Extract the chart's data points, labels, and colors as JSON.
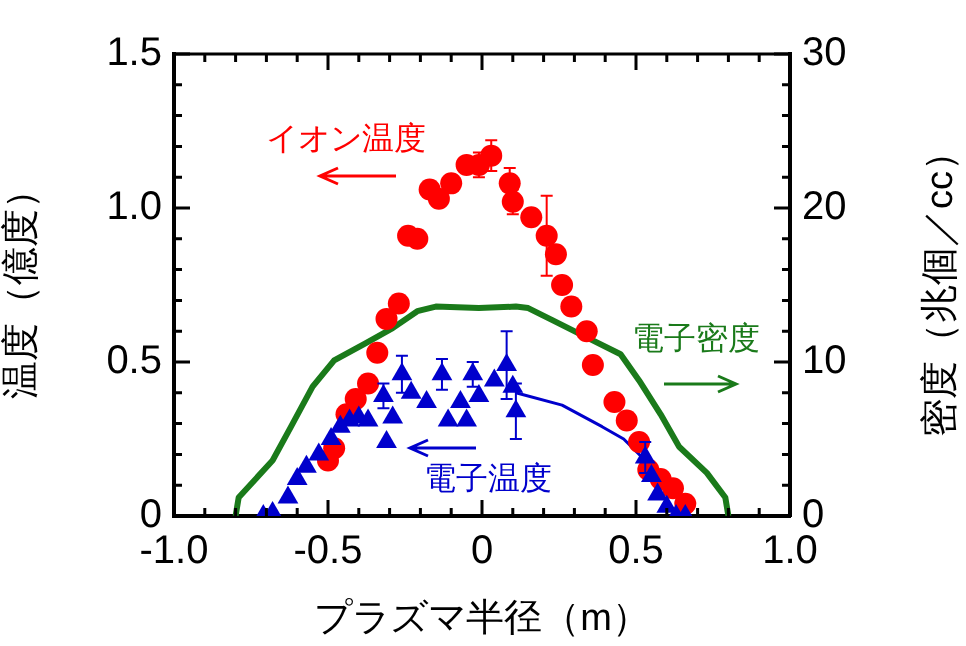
{
  "chart_data": {
    "type": "scatter",
    "xlabel": "プラズマ半径（m）",
    "ylabel": "温度（億度）",
    "y2label": "密度（兆個／cc）",
    "xlim": [
      -1.0,
      1.0
    ],
    "xticks": [
      {
        "value": -1.0,
        "label": "-1.0"
      },
      {
        "value": -0.9,
        "label": null
      },
      {
        "value": -0.8,
        "label": null
      },
      {
        "value": -0.7,
        "label": null
      },
      {
        "value": -0.6,
        "label": null
      },
      {
        "value": -0.5,
        "label": "-0.5"
      },
      {
        "value": -0.4,
        "label": null
      },
      {
        "value": -0.3,
        "label": null
      },
      {
        "value": -0.2,
        "label": null
      },
      {
        "value": -0.1,
        "label": null
      },
      0,
      {
        "value": 0.1,
        "label": null
      },
      {
        "value": 0.2,
        "label": null
      },
      {
        "value": 0.3,
        "label": null
      },
      {
        "value": 0.4,
        "label": null
      },
      0.5,
      {
        "value": 0.6,
        "label": null
      },
      {
        "value": 0.7,
        "label": null
      },
      {
        "value": 0.8,
        "label": null
      },
      {
        "value": 0.9,
        "label": null
      },
      {
        "value": 1.0,
        "label": "1.0"
      }
    ],
    "ylim": [
      0,
      1.5
    ],
    "yticks": [
      0,
      {
        "value": 0.1,
        "label": null
      },
      {
        "value": 0.2,
        "label": null
      },
      {
        "value": 0.3,
        "label": null
      },
      {
        "value": 0.4,
        "label": null
      },
      0.5,
      {
        "value": 0.6,
        "label": null
      },
      {
        "value": 0.7,
        "label": null
      },
      {
        "value": 0.8,
        "label": null
      },
      {
        "value": 0.9,
        "label": null
      },
      {
        "value": 1.0,
        "label": "1.0"
      },
      {
        "value": 1.1,
        "label": null
      },
      {
        "value": 1.2,
        "label": null
      },
      {
        "value": 1.3,
        "label": null
      },
      {
        "value": 1.4,
        "label": null
      },
      1.5
    ],
    "y2lim": [
      0,
      30
    ],
    "y2ticks": [
      0,
      {
        "value": 2,
        "label": null
      },
      {
        "value": 4,
        "label": null
      },
      {
        "value": 6,
        "label": null
      },
      {
        "value": 8,
        "label": null
      },
      10,
      {
        "value": 12,
        "label": null
      },
      {
        "value": 14,
        "label": null
      },
      {
        "value": 16,
        "label": null
      },
      {
        "value": 18,
        "label": null
      },
      20,
      {
        "value": 22,
        "label": null
      },
      {
        "value": 24,
        "label": null
      },
      {
        "value": 26,
        "label": null
      },
      {
        "value": 28,
        "label": null
      },
      30
    ],
    "grid": false,
    "legend": false,
    "annotations": [
      "イオン温度",
      "電子温度",
      "電子密度"
    ],
    "series": [
      {
        "marker": "circle",
        "color": "#ff0000",
        "x": [
          -0.5,
          -0.48,
          -0.44,
          -0.41,
          -0.37,
          -0.34,
          -0.31,
          -0.27,
          -0.24,
          -0.21,
          -0.17,
          -0.14,
          -0.1,
          -0.05,
          -0.01,
          0.03,
          0.09,
          0.1,
          0.16,
          0.21,
          0.24,
          0.26,
          0.29,
          0.34,
          0.36,
          0.43,
          0.47,
          0.51,
          0.54,
          0.58,
          0.62,
          0.66
        ],
        "values": [
          0.18,
          0.22,
          0.33,
          0.38,
          0.43,
          0.53,
          0.64,
          0.69,
          0.91,
          0.9,
          1.06,
          1.03,
          1.08,
          1.14,
          1.14,
          1.17,
          1.08,
          1.02,
          0.97,
          0.91,
          0.85,
          0.75,
          0.68,
          0.6,
          0.49,
          0.37,
          0.31,
          0.24,
          0.15,
          0.12,
          0.09,
          0.04
        ],
        "errors": [
          null,
          null,
          null,
          null,
          null,
          null,
          null,
          null,
          null,
          null,
          null,
          null,
          null,
          null,
          0.04,
          0.05,
          0.05,
          0.04,
          null,
          0.13,
          null,
          null,
          null,
          null,
          null,
          null,
          null,
          null,
          null,
          null,
          null,
          null
        ]
      },
      {
        "marker": "triangle",
        "color": "#0000cc",
        "x": [
          -0.71,
          -0.68,
          -0.63,
          -0.6,
          -0.57,
          -0.53,
          -0.49,
          -0.46,
          -0.43,
          -0.4,
          -0.37,
          -0.32,
          -0.31,
          -0.29,
          -0.26,
          -0.23,
          -0.18,
          -0.13,
          -0.11,
          -0.07,
          -0.05,
          -0.03,
          -0.01,
          0.04,
          0.08,
          0.1,
          0.11,
          0.53,
          0.55,
          0.57,
          0.6,
          0.63,
          0.66
        ],
        "values": [
          0,
          0.01,
          0.06,
          0.12,
          0.16,
          0.2,
          0.25,
          0.29,
          0.31,
          0.32,
          0.31,
          0.39,
          0.24,
          0.32,
          0.46,
          0.4,
          0.37,
          0.46,
          0.31,
          0.37,
          0.31,
          0.46,
          0.39,
          0.44,
          0.49,
          0.42,
          0.34,
          0.19,
          0.13,
          0.07,
          0.03,
          0,
          0
        ],
        "errors": [
          null,
          null,
          null,
          null,
          null,
          null,
          null,
          null,
          null,
          null,
          null,
          0.04,
          null,
          null,
          0.06,
          null,
          null,
          0.05,
          null,
          null,
          null,
          0.04,
          null,
          null,
          0.11,
          null,
          0.09,
          0.05,
          null,
          null,
          null,
          null,
          null
        ]
      },
      {
        "type": "line",
        "marker": "none",
        "color": "#0000cc",
        "x": [
          0.11,
          0.26,
          0.39,
          0.46,
          0.53
        ],
        "values": [
          0.4,
          0.36,
          0.29,
          0.25,
          0.18
        ]
      },
      {
        "type": "line",
        "marker": "none",
        "axis": "y2",
        "color": "#1a7a1a",
        "x": [
          -0.8,
          -0.79,
          -0.68,
          -0.62,
          -0.55,
          -0.48,
          -0.38,
          -0.29,
          -0.21,
          -0.15,
          -0.01,
          0.11,
          0.15,
          0.23,
          0.34,
          0.45,
          0.51,
          0.58,
          0.64,
          0.73,
          0.79,
          0.8
        ],
        "values": [
          0,
          1.2,
          3.6,
          5.8,
          8.4,
          10.1,
          11.2,
          12.2,
          13.3,
          13.6,
          13.5,
          13.6,
          13.5,
          12.7,
          11.6,
          10.5,
          8.8,
          6.6,
          4.5,
          2.8,
          1.2,
          0
        ]
      }
    ]
  }
}
